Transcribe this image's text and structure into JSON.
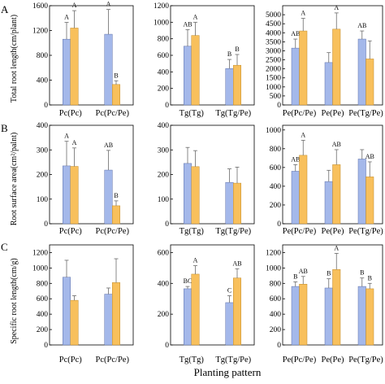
{
  "figure": {
    "xlabel": "Planting pattern",
    "row_labels": [
      "A",
      "B",
      "C"
    ],
    "ylabels": [
      "Total root length(cm/plant)",
      "Root surface area(cm²/palnt)",
      "Specific root length(cm/g)"
    ],
    "colors": {
      "series1": "#a4b8ea",
      "series2": "#f8c05c",
      "error": "#6b6b6b"
    }
  },
  "chart_data": [
    {
      "type": "bar",
      "row": 0,
      "col": 0,
      "categories": [
        "Pc(Pc)",
        "Pc(Pc/Pe)"
      ],
      "ylim": [
        0,
        1600
      ],
      "yticks": [
        0,
        400,
        800,
        1200,
        1600
      ],
      "series": [
        {
          "values": [
            1060,
            1140
          ],
          "errors": [
            270,
            400
          ],
          "labels": [
            "A",
            "A"
          ]
        },
        {
          "values": [
            1240,
            330
          ],
          "errors": [
            280,
            60
          ],
          "labels": [
            "A",
            "B"
          ]
        }
      ]
    },
    {
      "type": "bar",
      "row": 0,
      "col": 1,
      "categories": [
        "Tg(Tg)",
        "Tg(Tg/Pe)"
      ],
      "ylim": [
        0,
        1200
      ],
      "yticks": [
        0,
        200,
        400,
        600,
        800,
        1000,
        1200
      ],
      "series": [
        {
          "values": [
            710,
            440
          ],
          "errors": [
            200,
            110
          ],
          "labels": [
            "AB",
            "B"
          ]
        },
        {
          "values": [
            840,
            480
          ],
          "errors": [
            160,
            130
          ],
          "labels": [
            "A",
            "B"
          ]
        }
      ]
    },
    {
      "type": "bar",
      "row": 0,
      "col": 2,
      "categories": [
        "Pe(Pc/Pe)",
        "Pe(Pe)",
        "Pe(Tg/Pe)"
      ],
      "ylim": [
        0,
        5500
      ],
      "yticks": [
        0,
        500,
        1000,
        1500,
        2000,
        2500,
        3000,
        3500,
        4000,
        4500,
        5000
      ],
      "series": [
        {
          "values": [
            3150,
            2350,
            3650
          ],
          "errors": [
            500,
            550,
            450
          ],
          "labels": [
            "AB",
            "",
            "AB"
          ]
        },
        {
          "values": [
            4100,
            4200,
            2550
          ],
          "errors": [
            700,
            900,
            1000
          ],
          "labels": [
            "A",
            "A",
            ""
          ]
        }
      ]
    },
    {
      "type": "bar",
      "row": 1,
      "col": 0,
      "categories": [
        "Pc(Pc)",
        "Pc(Pc/Pe)"
      ],
      "ylim": [
        0,
        400
      ],
      "yticks": [
        0,
        100,
        200,
        300,
        400
      ],
      "series": [
        {
          "values": [
            235,
            218
          ],
          "errors": [
            100,
            80
          ],
          "labels": [
            "A",
            "AB"
          ]
        },
        {
          "values": [
            233,
            73
          ],
          "errors": [
            75,
            20
          ],
          "labels": [
            "A",
            "B"
          ]
        }
      ]
    },
    {
      "type": "bar",
      "row": 1,
      "col": 1,
      "categories": [
        "Tg(Tg)",
        "Tg(Tg/Pe)"
      ],
      "ylim": [
        0,
        400
      ],
      "yticks": [
        0,
        100,
        200,
        300,
        400
      ],
      "series": [
        {
          "values": [
            245,
            168
          ],
          "errors": [
            65,
            55
          ],
          "labels": [
            "",
            ""
          ]
        },
        {
          "values": [
            232,
            165
          ],
          "errors": [
            65,
            65
          ],
          "labels": [
            "",
            ""
          ]
        }
      ]
    },
    {
      "type": "bar",
      "row": 1,
      "col": 2,
      "categories": [
        "Pe(Pc/Pe)",
        "Pe(Pe)",
        "Pe(Tg/Pe)"
      ],
      "ylim": [
        0,
        1050
      ],
      "yticks": [
        0,
        200,
        400,
        600,
        800,
        1000
      ],
      "series": [
        {
          "values": [
            560,
            450,
            690
          ],
          "errors": [
            70,
            120,
            100
          ],
          "labels": [
            "AB",
            "",
            ""
          ]
        },
        {
          "values": [
            730,
            630,
            500
          ],
          "errors": [
            160,
            160,
            160
          ],
          "labels": [
            "A",
            "AB",
            "AB"
          ]
        }
      ]
    },
    {
      "type": "bar",
      "row": 2,
      "col": 0,
      "categories": [
        "Pc(Pc)",
        "Pc(Pc/Pe)"
      ],
      "ylim": [
        0,
        1300
      ],
      "yticks": [
        0,
        200,
        400,
        600,
        800,
        1000,
        1200
      ],
      "series": [
        {
          "values": [
            880,
            660
          ],
          "errors": [
            220,
            80
          ],
          "labels": [
            "",
            ""
          ]
        },
        {
          "values": [
            580,
            810
          ],
          "errors": [
            60,
            310
          ],
          "labels": [
            "",
            ""
          ]
        }
      ]
    },
    {
      "type": "bar",
      "row": 2,
      "col": 1,
      "categories": [
        "Tg(Tg)",
        "Tg(Tg/Pe)"
      ],
      "ylim": [
        0,
        650
      ],
      "yticks": [
        0,
        200,
        400,
        600
      ],
      "series": [
        {
          "values": [
            365,
            275
          ],
          "errors": [
            15,
            45
          ],
          "labels": [
            "BC",
            "C"
          ]
        },
        {
          "values": [
            460,
            435
          ],
          "errors": [
            55,
            60
          ],
          "labels": [
            "A",
            "AB"
          ]
        }
      ]
    },
    {
      "type": "bar",
      "row": 2,
      "col": 2,
      "categories": [
        "Pe(Pc/Pe)",
        "Pe(Pe)",
        "Pe(Tg/Pe)"
      ],
      "ylim": [
        0,
        1300
      ],
      "yticks": [
        0,
        200,
        400,
        600,
        800,
        1000,
        1200
      ],
      "series": [
        {
          "values": [
            760,
            740,
            760
          ],
          "errors": [
            60,
            120,
            110
          ],
          "labels": [
            "B",
            "B",
            "B"
          ]
        },
        {
          "values": [
            790,
            980,
            730
          ],
          "errors": [
            100,
            210,
            70
          ],
          "labels": [
            "AB",
            "A",
            "B"
          ]
        }
      ]
    }
  ]
}
